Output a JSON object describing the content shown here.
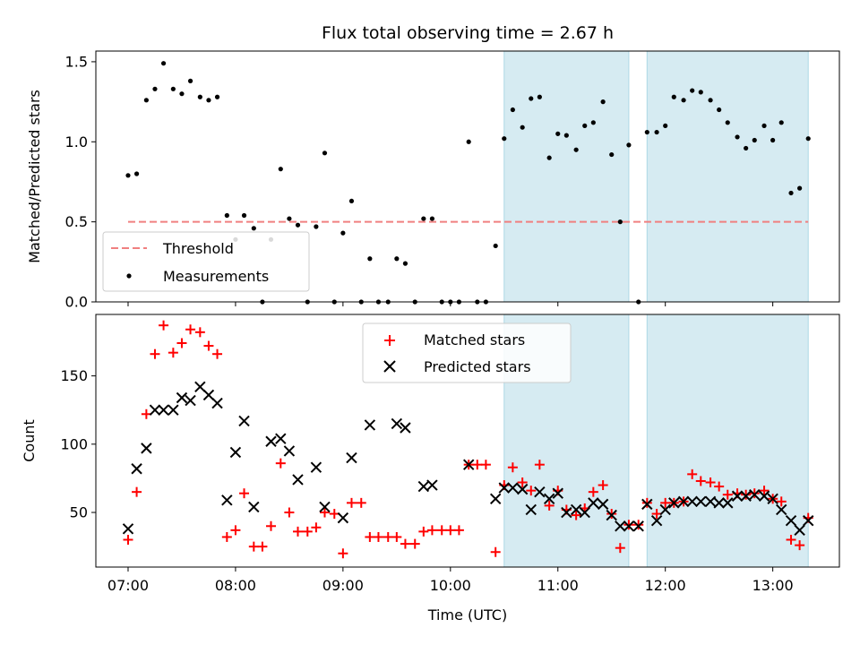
{
  "figure": {
    "title": "Flux total observing time = 2.67 h",
    "xlabel": "Time (UTC)",
    "x_ticks": [
      "07:00",
      "08:00",
      "09:00",
      "10:00",
      "11:00",
      "12:00",
      "13:00"
    ]
  },
  "chart_data": [
    {
      "type": "scatter",
      "ylabel": "Matched/Predicted stars",
      "xlim": [
        6.7,
        13.62
      ],
      "ylim": [
        0,
        1.5667
      ],
      "y_ticks": [
        0.0,
        0.5,
        1.0,
        1.5
      ],
      "legend_position": "lower-left",
      "legend": {
        "threshold_label": "Threshold",
        "measurements_label": "Measurements"
      },
      "threshold": {
        "name": "Threshold",
        "value": 0.5,
        "x_start": 7.0,
        "x_end": 13.33,
        "color": "#f08080"
      },
      "shaded_regions": [
        {
          "start": 10.5,
          "end": 11.66
        },
        {
          "start": 11.83,
          "end": 13.33
        }
      ],
      "colors": {
        "measurements": "#000000",
        "shade": "#add8e6"
      },
      "series": [
        {
          "name": "Measurements",
          "x": [
            7.0,
            7.08,
            7.17,
            7.25,
            7.33,
            7.42,
            7.5,
            7.58,
            7.67,
            7.75,
            7.83,
            7.92,
            8.0,
            8.08,
            8.17,
            8.25,
            8.33,
            8.42,
            8.5,
            8.58,
            8.67,
            8.75,
            8.83,
            8.92,
            9.0,
            9.08,
            9.17,
            9.25,
            9.33,
            9.42,
            9.5,
            9.58,
            9.67,
            9.75,
            9.83,
            9.92,
            10.0,
            10.08,
            10.17,
            10.25,
            10.33,
            10.42,
            10.5,
            10.58,
            10.67,
            10.75,
            10.83,
            10.92,
            11.0,
            11.08,
            11.17,
            11.25,
            11.33,
            11.42,
            11.5,
            11.58,
            11.66,
            11.75,
            11.83,
            11.92,
            12.0,
            12.08,
            12.17,
            12.25,
            12.33,
            12.42,
            12.5,
            12.58,
            12.67,
            12.75,
            12.83,
            12.92,
            13.0,
            13.08,
            13.17,
            13.25,
            13.33
          ],
          "y": [
            0.79,
            0.8,
            1.26,
            1.33,
            1.49,
            1.33,
            1.3,
            1.38,
            1.28,
            1.26,
            1.28,
            0.54,
            0.39,
            0.54,
            0.46,
            0.0,
            0.39,
            0.83,
            0.52,
            0.48,
            0.0,
            0.47,
            0.93,
            0.0,
            0.43,
            0.63,
            0.0,
            0.27,
            0.0,
            0.0,
            0.27,
            0.24,
            0.0,
            0.52,
            0.52,
            0.0,
            0.0,
            0.0,
            1.0,
            0.0,
            0.0,
            0.35,
            1.02,
            1.2,
            1.09,
            1.27,
            1.28,
            0.9,
            1.05,
            1.04,
            0.95,
            1.1,
            1.12,
            1.25,
            0.92,
            0.5,
            0.98,
            0.0,
            1.06,
            1.06,
            1.1,
            1.28,
            1.26,
            1.32,
            1.31,
            1.26,
            1.2,
            1.12,
            1.03,
            0.96,
            1.01,
            1.1,
            1.01,
            1.12,
            0.68,
            0.71,
            1.02
          ]
        }
      ]
    },
    {
      "type": "scatter",
      "ylabel": "Count",
      "xlim": [
        6.7,
        13.62
      ],
      "ylim": [
        10,
        195
      ],
      "y_ticks": [
        50,
        100,
        150
      ],
      "legend_position": "upper-center",
      "legend": {
        "matched_label": "Matched stars",
        "predicted_label": "Predicted stars"
      },
      "shaded_regions": [
        {
          "start": 10.5,
          "end": 11.66
        },
        {
          "start": 11.83,
          "end": 13.33
        }
      ],
      "colors": {
        "matched": "#ff0000",
        "predicted": "#000000",
        "shade": "#add8e6"
      },
      "series": [
        {
          "name": "Matched stars",
          "x": [
            7.0,
            7.08,
            7.17,
            7.25,
            7.33,
            7.42,
            7.5,
            7.58,
            7.67,
            7.75,
            7.83,
            7.92,
            8.0,
            8.08,
            8.17,
            8.25,
            8.33,
            8.42,
            8.5,
            8.58,
            8.67,
            8.75,
            8.83,
            8.92,
            9.0,
            9.08,
            9.17,
            9.25,
            9.33,
            9.42,
            9.5,
            9.58,
            9.67,
            9.75,
            9.83,
            9.92,
            10.0,
            10.08,
            10.17,
            10.25,
            10.33,
            10.42,
            10.5,
            10.58,
            10.67,
            10.75,
            10.83,
            10.92,
            11.0,
            11.08,
            11.17,
            11.25,
            11.33,
            11.42,
            11.5,
            11.58,
            11.66,
            11.75,
            11.83,
            11.92,
            12.0,
            12.08,
            12.17,
            12.25,
            12.33,
            12.42,
            12.5,
            12.58,
            12.67,
            12.75,
            12.83,
            12.92,
            13.0,
            13.08,
            13.17,
            13.25,
            13.33
          ],
          "y": [
            30,
            65,
            122,
            166,
            187,
            167,
            174,
            184,
            182,
            172,
            166,
            32,
            37,
            64,
            25,
            25,
            40,
            86,
            50,
            36,
            36,
            39,
            50,
            49,
            20,
            57,
            57,
            32,
            32,
            32,
            32,
            27,
            27,
            36,
            37,
            37,
            37,
            37,
            85,
            85,
            85,
            21,
            70,
            83,
            72,
            66,
            85,
            55,
            66,
            52,
            48,
            53,
            65,
            70,
            49,
            24,
            41,
            41,
            57,
            49,
            57,
            57,
            58,
            78,
            73,
            72,
            69,
            63,
            64,
            63,
            64,
            66,
            60,
            58,
            30,
            26,
            46
          ]
        },
        {
          "name": "Predicted stars",
          "x": [
            7.0,
            7.08,
            7.17,
            7.25,
            7.33,
            7.42,
            7.5,
            7.58,
            7.67,
            7.75,
            7.83,
            7.92,
            8.0,
            8.08,
            8.17,
            8.33,
            8.42,
            8.5,
            8.58,
            8.75,
            8.83,
            9.0,
            9.08,
            9.25,
            9.5,
            9.58,
            9.75,
            9.83,
            10.17,
            10.42,
            10.5,
            10.58,
            10.67,
            10.75,
            10.83,
            10.92,
            11.0,
            11.08,
            11.17,
            11.25,
            11.33,
            11.42,
            11.5,
            11.58,
            11.66,
            11.75,
            11.83,
            11.92,
            12.0,
            12.08,
            12.17,
            12.25,
            12.33,
            12.42,
            12.5,
            12.58,
            12.67,
            12.75,
            12.83,
            12.92,
            13.0,
            13.08,
            13.17,
            13.25,
            13.33
          ],
          "y": [
            38,
            82,
            97,
            125,
            125,
            125,
            134,
            132,
            142,
            136,
            130,
            59,
            94,
            117,
            54,
            102,
            104,
            95,
            74,
            83,
            54,
            46,
            90,
            114,
            115,
            112,
            69,
            70,
            85,
            60,
            68,
            68,
            67,
            52,
            65,
            60,
            64,
            50,
            52,
            50,
            57,
            56,
            48,
            40,
            40,
            40,
            56,
            44,
            52,
            57,
            58,
            58,
            58,
            58,
            57,
            57,
            62,
            62,
            63,
            62,
            60,
            52,
            44,
            37,
            44
          ]
        }
      ]
    }
  ]
}
